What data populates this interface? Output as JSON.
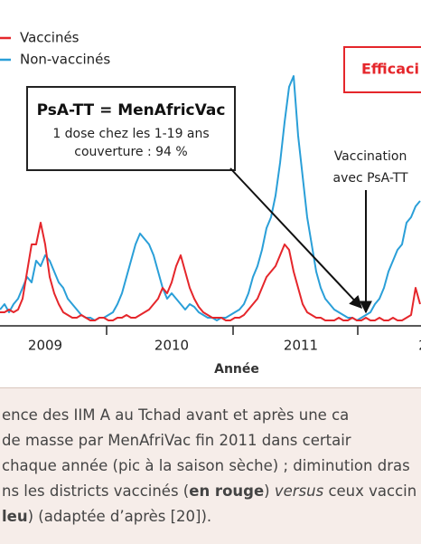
{
  "chart_data": {
    "type": "line",
    "x_labels": [
      "2009",
      "2010",
      "2011",
      "2"
    ],
    "x_title": "Année",
    "ylim": [
      0,
      100
    ],
    "series": [
      {
        "name": "Vaccinés",
        "color": "#e5262b",
        "values": [
          5,
          5,
          6,
          5,
          6,
          10,
          20,
          30,
          30,
          38,
          30,
          18,
          12,
          8,
          5,
          4,
          3,
          3,
          4,
          3,
          2,
          2,
          3,
          3,
          2,
          2,
          3,
          3,
          4,
          3,
          3,
          4,
          5,
          6,
          8,
          10,
          14,
          12,
          16,
          22,
          26,
          20,
          14,
          10,
          7,
          5,
          4,
          3,
          3,
          3,
          2,
          2,
          3,
          3,
          4,
          6,
          8,
          10,
          14,
          18,
          20,
          22,
          26,
          30,
          28,
          20,
          14,
          8,
          5,
          4,
          3,
          3,
          2,
          2,
          2,
          3,
          2,
          2,
          3,
          2,
          2,
          3,
          2,
          2,
          3,
          2,
          2,
          3,
          2,
          2,
          3,
          4,
          14,
          8
        ]
      },
      {
        "name": "Non-vaccinés",
        "color": "#2a9fd8",
        "values": [
          6,
          8,
          5,
          8,
          10,
          14,
          18,
          16,
          24,
          22,
          26,
          24,
          20,
          16,
          14,
          10,
          8,
          6,
          4,
          3,
          3,
          2,
          3,
          3,
          4,
          5,
          8,
          12,
          18,
          24,
          30,
          34,
          32,
          30,
          26,
          20,
          14,
          10,
          12,
          10,
          8,
          6,
          8,
          7,
          5,
          4,
          3,
          3,
          2,
          3,
          3,
          4,
          5,
          6,
          8,
          12,
          18,
          22,
          28,
          36,
          40,
          48,
          60,
          75,
          88,
          92,
          70,
          55,
          40,
          30,
          20,
          14,
          10,
          8,
          6,
          5,
          4,
          3,
          3,
          2,
          3,
          4,
          5,
          8,
          10,
          14,
          20,
          24,
          28,
          30,
          38,
          40,
          44,
          46
        ]
      }
    ]
  },
  "annotations": {
    "vaccine_box": {
      "title": "PsA-TT = MenAfricVac",
      "lines": [
        "1 dose chez les 1-19 ans",
        "couverture : 94 %"
      ]
    },
    "vaccination": [
      "Vaccination",
      "avec PsA-TT"
    ],
    "efficacy": "Efficaci"
  },
  "caption": {
    "line1": "ence des IIM A au Tchad avant et après une ca",
    "line2": "de masse par MenAfriVac fin 2011 dans certair",
    "line3": "chaque année (pic à la saison sèche) ; diminution dras",
    "line4": [
      "ns les districts vaccinés (",
      "en rouge",
      ") ",
      "versus",
      " ceux vaccin"
    ],
    "line5": [
      "leu",
      ") (adaptée d’après [20])."
    ]
  }
}
